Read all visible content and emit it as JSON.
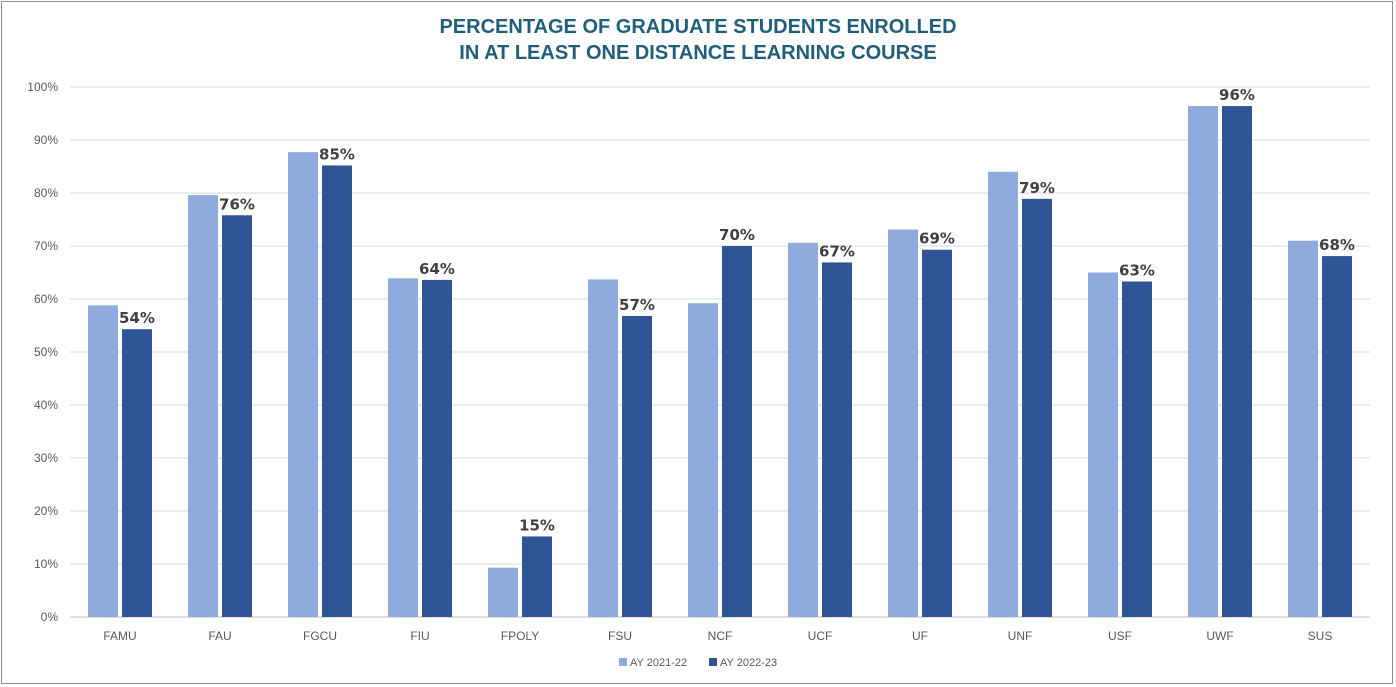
{
  "chart_data": {
    "type": "bar",
    "title_lines": [
      "PERCENTAGE OF GRADUATE STUDENTS ENROLLED",
      "IN AT LEAST ONE DISTANCE LEARNING COURSE"
    ],
    "categories": [
      "FAMU",
      "FAU",
      "FGCU",
      "FIU",
      "FPOLY",
      "FSU",
      "NCF",
      "UCF",
      "UF",
      "UNF",
      "USF",
      "UWF",
      "SUS"
    ],
    "series": [
      {
        "name": "AY 2021-22",
        "color": "#8faadc",
        "values": [
          58.8,
          79.6,
          87.7,
          63.9,
          9.3,
          63.7,
          59.2,
          70.6,
          73.1,
          84.0,
          65.0,
          96.4,
          71.0
        ]
      },
      {
        "name": "AY 2022-23",
        "color": "#2f5597",
        "values": [
          54.3,
          75.8,
          85.2,
          63.6,
          15.2,
          56.8,
          70.0,
          66.9,
          69.3,
          78.9,
          63.3,
          96.4,
          68.1
        ],
        "data_labels": [
          "54%",
          "76%",
          "85%",
          "64%",
          "15%",
          "57%",
          "70%",
          "67%",
          "69%",
          "79%",
          "63%",
          "96%",
          "68%"
        ]
      }
    ],
    "ylim": [
      0,
      100
    ],
    "yticks": [
      0,
      10,
      20,
      30,
      40,
      50,
      60,
      70,
      80,
      90,
      100
    ],
    "ytick_labels": [
      "0%",
      "10%",
      "20%",
      "30%",
      "40%",
      "50%",
      "60%",
      "70%",
      "80%",
      "90%",
      "100%"
    ],
    "grid": true,
    "legend": "bottom-center"
  }
}
